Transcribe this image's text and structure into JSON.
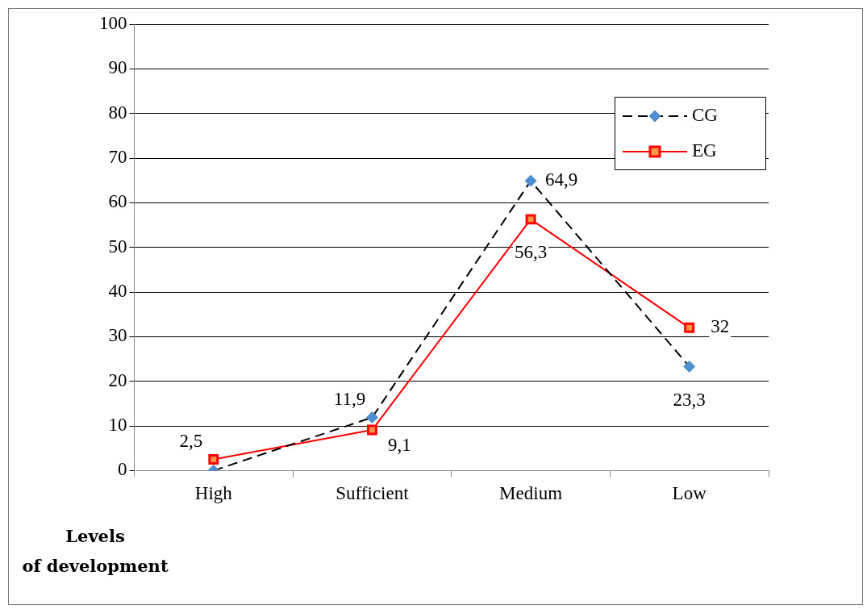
{
  "chart_data": {
    "type": "line",
    "xlabel": "Levels\nof development",
    "categories": [
      "High",
      "Sufficient",
      "Medium",
      "Low"
    ],
    "series": [
      {
        "name": "CG",
        "color": "#000000",
        "line_style": "dashed",
        "marker": "diamond",
        "values": [
          0,
          11.9,
          64.9,
          23.3
        ],
        "value_labels": [
          null,
          "11,9",
          "64,9",
          "23,3"
        ]
      },
      {
        "name": "EG",
        "color": "#ff0000",
        "line_style": "solid",
        "marker": "square",
        "values": [
          2.5,
          9.1,
          56.3,
          32
        ],
        "value_labels": [
          "2,5",
          "9,1",
          "56,3",
          "32"
        ]
      }
    ],
    "ylim": [
      0,
      100
    ],
    "yticks": [
      0,
      10,
      20,
      30,
      40,
      50,
      60,
      70,
      80,
      90,
      100
    ],
    "grid": "y",
    "legend": "top right"
  }
}
